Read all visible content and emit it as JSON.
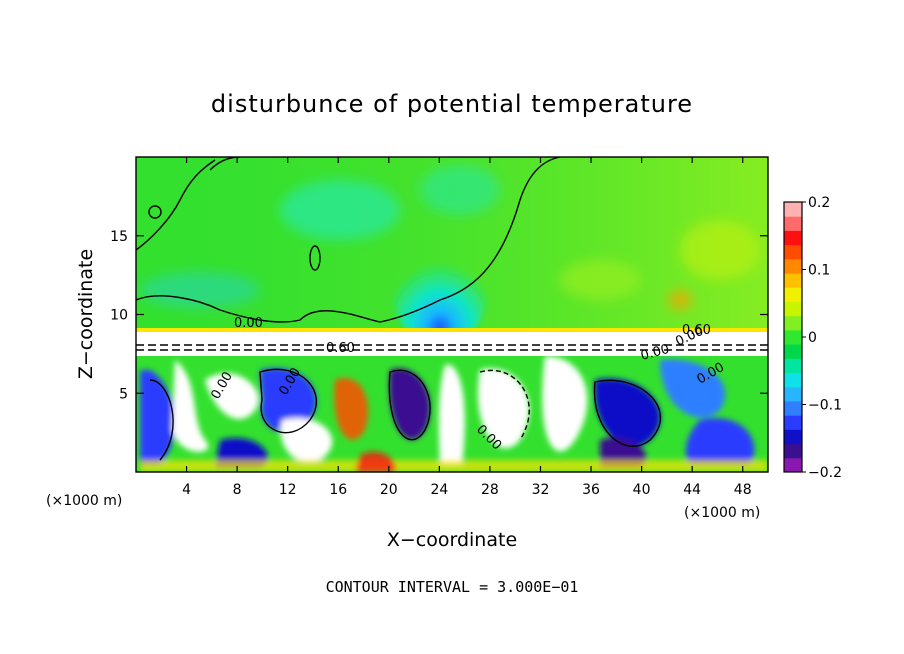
{
  "chart_data": {
    "type": "heatmap",
    "title": "disturbunce of potential temperature",
    "xlabel": "X−coordinate",
    "ylabel": "Z−coordinate",
    "x_unit_label": "(×1000 m)",
    "x_unit_label_right": "(×1000 m)",
    "xlim": [
      0,
      50
    ],
    "ylim": [
      0,
      20
    ],
    "x_ticks": [
      "4",
      "8",
      "12",
      "16",
      "20",
      "24",
      "28",
      "32",
      "36",
      "40",
      "44",
      "48"
    ],
    "x_tick_values": [
      4,
      8,
      12,
      16,
      20,
      24,
      28,
      32,
      36,
      40,
      44,
      48
    ],
    "y_ticks": [
      "5",
      "10",
      "15"
    ],
    "y_tick_values": [
      5,
      10,
      15
    ],
    "colorbar": {
      "min": -0.2,
      "max": 0.2,
      "tick_labels": [
        "0.2",
        "0.1",
        "0",
        "−0.1",
        "−0.2"
      ],
      "tick_values": [
        0.2,
        0.1,
        0,
        -0.1,
        -0.2
      ],
      "colors": [
        "#8a18b0",
        "#3a0f90",
        "#1010c8",
        "#2a3cff",
        "#2f7fff",
        "#27b5ff",
        "#10e0e8",
        "#00e6a0",
        "#00d84a",
        "#30e830",
        "#80f020",
        "#c8f400",
        "#f0f000",
        "#ffc000",
        "#ff8800",
        "#ff4c00",
        "#ff1010",
        "#ff6a6a",
        "#ffb0b0"
      ]
    },
    "contour_labels": [
      "0.00",
      "0.60",
      "0.00",
      "0.00",
      "0.00",
      "0.60",
      "0.00",
      "0.00",
      "0.00"
    ],
    "footer": "CONTOUR INTERVAL = 3.000E−01",
    "regions": {
      "upper_layer_mean": 0.02,
      "upper_cyan_plume_center_x": 25,
      "interface_height": 8.8,
      "lower_layer": "turbulent mixed field, values spanning −0.2 to 0.2"
    }
  }
}
